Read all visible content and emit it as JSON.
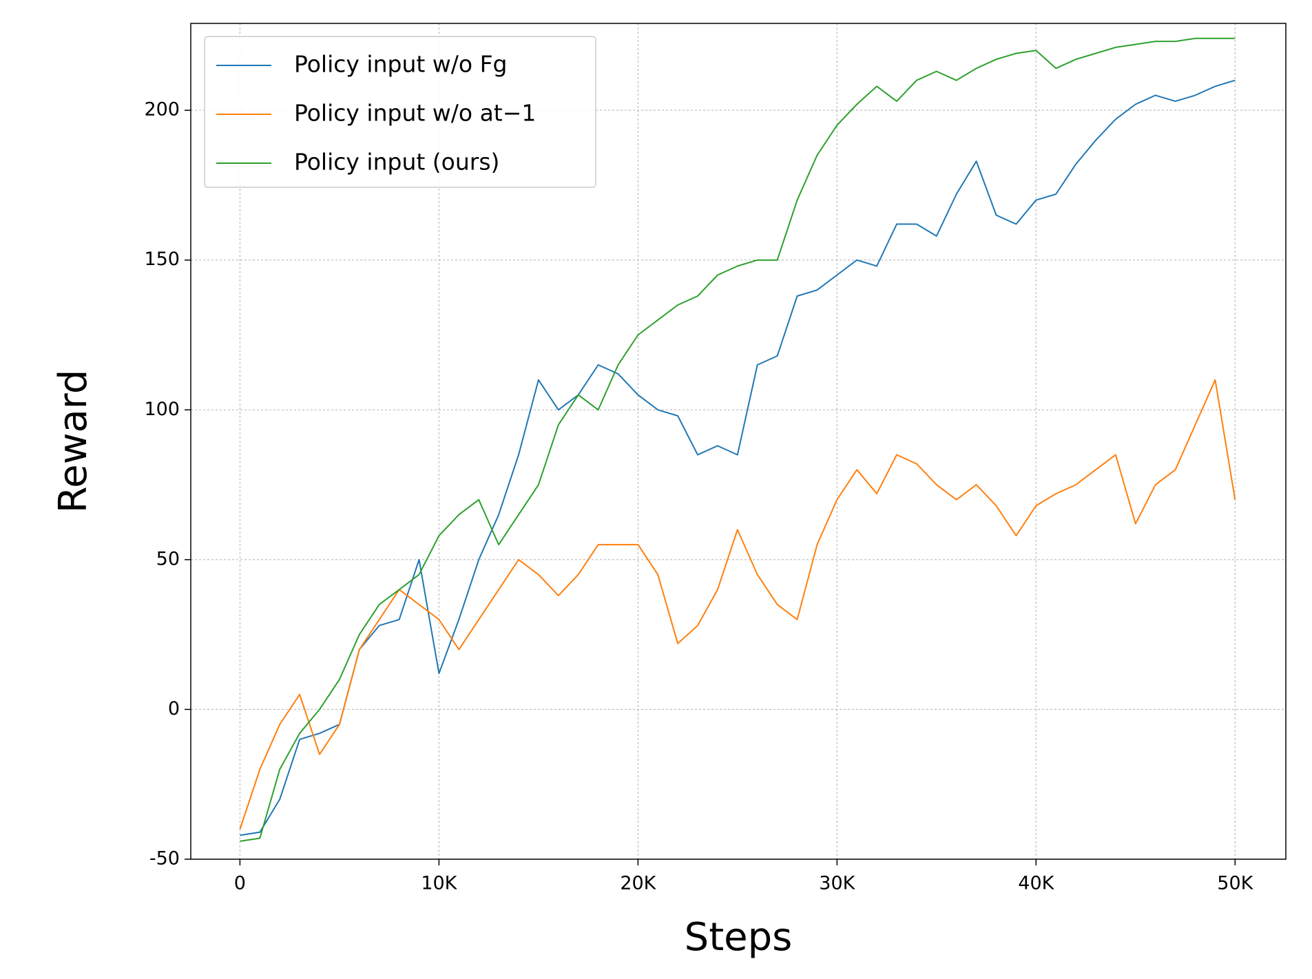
{
  "chart_data": {
    "type": "line",
    "x_label": "Steps",
    "y_label": "Reward",
    "x": [
      0,
      1000,
      2000,
      3000,
      4000,
      5000,
      6000,
      7000,
      8000,
      9000,
      10000,
      11000,
      12000,
      13000,
      14000,
      15000,
      16000,
      17000,
      18000,
      19000,
      20000,
      21000,
      22000,
      23000,
      24000,
      25000,
      26000,
      27000,
      28000,
      29000,
      30000,
      31000,
      32000,
      33000,
      34000,
      35000,
      36000,
      37000,
      38000,
      39000,
      40000,
      41000,
      42000,
      43000,
      44000,
      45000,
      46000,
      47000,
      48000,
      49000,
      50000
    ],
    "series": [
      {
        "name": "Policy input w/o Fg",
        "color": "#1f77b4",
        "values": [
          -42,
          -41,
          -30,
          -10,
          -8,
          -5,
          20,
          28,
          30,
          50,
          12,
          30,
          50,
          65,
          85,
          110,
          100,
          105,
          115,
          112,
          105,
          100,
          98,
          85,
          88,
          85,
          115,
          118,
          138,
          140,
          145,
          150,
          148,
          162,
          162,
          158,
          172,
          183,
          165,
          162,
          170,
          172,
          182,
          190,
          197,
          202,
          205,
          203,
          205,
          208,
          210
        ]
      },
      {
        "name": "Policy input w/o at−1",
        "color": "#ff7f0e",
        "values": [
          -40,
          -20,
          -5,
          5,
          -15,
          -5,
          20,
          30,
          40,
          35,
          30,
          20,
          30,
          40,
          50,
          45,
          38,
          45,
          55,
          55,
          55,
          45,
          22,
          28,
          40,
          60,
          45,
          35,
          30,
          55,
          70,
          80,
          72,
          85,
          82,
          75,
          70,
          75,
          68,
          58,
          68,
          72,
          75,
          80,
          85,
          62,
          75,
          80,
          95,
          110,
          70
        ]
      },
      {
        "name": "Policy input (ours)",
        "color": "#2ca02c",
        "values": [
          -44,
          -43,
          -20,
          -8,
          0,
          10,
          25,
          35,
          40,
          45,
          58,
          65,
          70,
          55,
          65,
          75,
          95,
          105,
          100,
          115,
          125,
          130,
          135,
          138,
          145,
          148,
          150,
          150,
          170,
          185,
          195,
          202,
          208,
          203,
          210,
          213,
          210,
          214,
          217,
          219,
          220,
          214,
          217,
          219,
          221,
          222,
          223,
          223,
          224,
          224,
          224
        ]
      }
    ],
    "xlim": [
      -2470,
      52550
    ],
    "ylim": [
      -50,
      229
    ],
    "xticks": [
      0,
      {
        "value": 10000,
        "label": "10K"
      },
      {
        "value": 20000,
        "label": "20K"
      },
      {
        "value": 30000,
        "label": "30K"
      },
      {
        "value": 40000,
        "label": "40K"
      },
      {
        "value": 50000,
        "label": "50K"
      }
    ],
    "yticks": [
      -50,
      0,
      50,
      100,
      150,
      200
    ],
    "grid": true,
    "legend": "upper-left"
  }
}
